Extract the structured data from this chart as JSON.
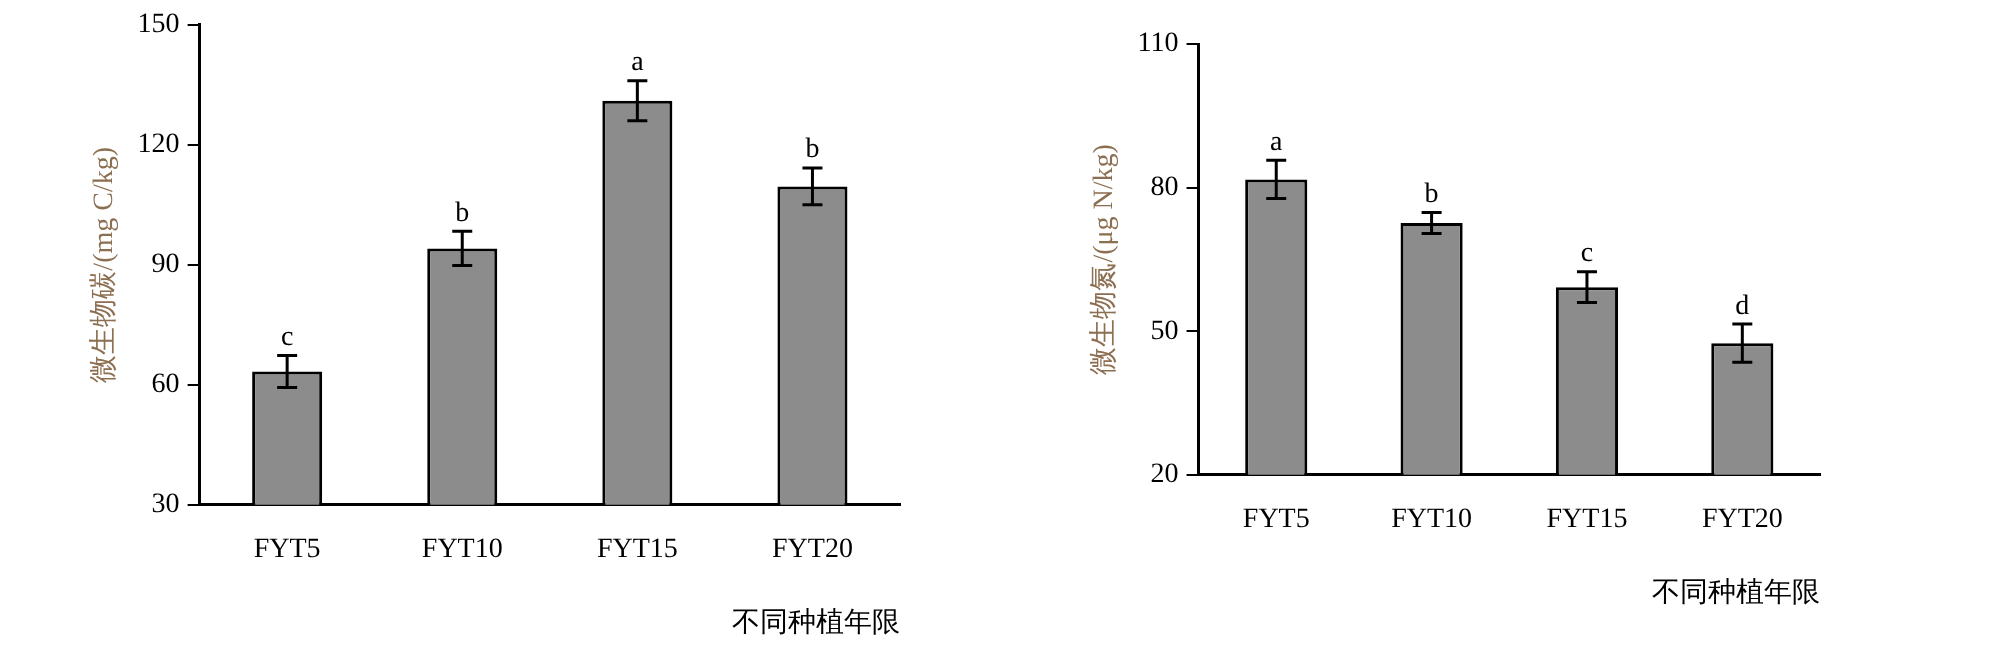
{
  "chart_data": [
    {
      "type": "bar",
      "categories": [
        "FYT5",
        "FYT10",
        "FYT15",
        "FYT20"
      ],
      "xlabel": "不同种植年限",
      "ylabel": "微生物碳/(mg C/kg)",
      "ylim": [
        30,
        150
      ],
      "yticks": [
        30,
        60,
        90,
        120,
        150
      ],
      "grid": false,
      "legend": false,
      "series": [
        {
          "color": "#8c8c8c",
          "values": [
            63.3,
            94.1,
            131,
            109.6
          ],
          "errors": [
            4,
            4.3,
            5,
            4.6
          ]
        }
      ],
      "annotations": [
        {
          "text": "c",
          "x": "FYT5",
          "y": 67.3
        },
        {
          "text": "b",
          "x": "FYT10",
          "y": 98.4
        },
        {
          "text": "a",
          "x": "FYT15",
          "y": 136
        },
        {
          "text": "b",
          "x": "FYT20",
          "y": 114.2
        }
      ]
    },
    {
      "type": "bar",
      "categories": [
        "FYT5",
        "FYT10",
        "FYT15",
        "FYT20"
      ],
      "xlabel": "不同种植年限",
      "ylabel": "微生物氮/(μg N/kg)",
      "ylim": [
        20,
        110
      ],
      "yticks": [
        20,
        50,
        80,
        110
      ],
      "grid": false,
      "legend": false,
      "series": [
        {
          "color": "#8c8c8c",
          "values": [
            81.7,
            72.6,
            59.2,
            47.5
          ],
          "errors": [
            4,
            2.2,
            3.2,
            4
          ]
        }
      ],
      "annotations": [
        {
          "text": "a",
          "x": "FYT5",
          "y": 85.6
        },
        {
          "text": "b",
          "x": "FYT10",
          "y": 74.7
        },
        {
          "text": "c",
          "x": "FYT15",
          "y": 62.4
        },
        {
          "text": "d",
          "x": "FYT20",
          "y": 51.4
        }
      ]
    }
  ]
}
